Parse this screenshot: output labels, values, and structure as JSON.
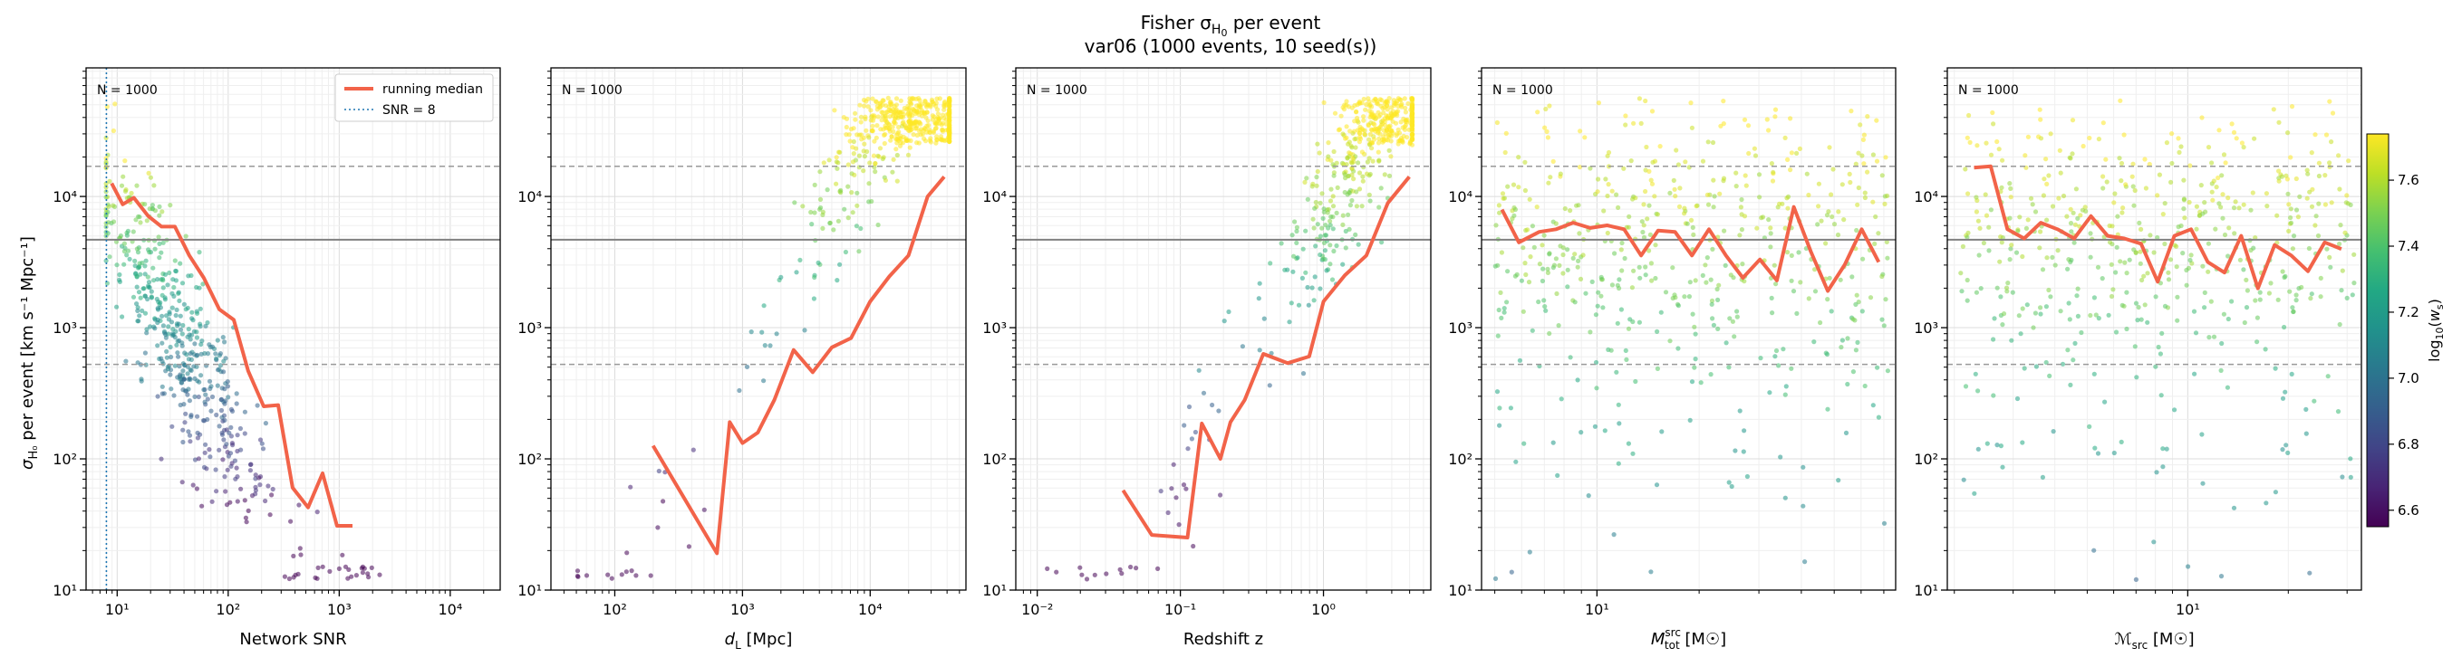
{
  "figure": {
    "title_line1": "Fisher σ",
    "title_sub": "H",
    "title_subsub": "0",
    "title_line1_tail": " per event",
    "title_line2": "var06  (1000 events, 10 seed(s))"
  },
  "ylabel": {
    "prefix": "σ",
    "sub": "H₀",
    "suffix": " per event [km s⁻¹ Mpc⁻¹]"
  },
  "y_ticks": [
    {
      "v": 1,
      "label": "10¹"
    },
    {
      "v": 2,
      "label": "10²"
    },
    {
      "v": 3,
      "label": "10³"
    },
    {
      "v": 4,
      "label": "10⁴"
    }
  ],
  "ylim_log": [
    1,
    4.98
  ],
  "ref_lines": {
    "solid_log": 3.67,
    "dashed_upper_log": 4.23,
    "dashed_lower_log": 2.72
  },
  "legend": {
    "median_label": "running median",
    "snr_label": "SNR = 8"
  },
  "colorbar": {
    "label": "log₁₀(w_s)",
    "range": [
      6.55,
      7.74
    ],
    "ticks": [
      {
        "v": 6.6,
        "label": "6.6"
      },
      {
        "v": 6.8,
        "label": "6.8"
      },
      {
        "v": 7.0,
        "label": "7.0"
      },
      {
        "v": 7.2,
        "label": "7.2"
      },
      {
        "v": 7.4,
        "label": "7.4"
      },
      {
        "v": 7.6,
        "label": "7.6"
      }
    ]
  },
  "colors": {
    "median": "#f26349",
    "snr_line": "#1f77b4",
    "ref_line": "#808080"
  },
  "chart_data": [
    {
      "type": "scatter",
      "n_label": "N = 1000",
      "xlabel": "Network SNR",
      "xlim_log": [
        0.72,
        4.45
      ],
      "x_ticks": [
        {
          "v": 1,
          "label": "10¹"
        },
        {
          "v": 2,
          "label": "10²"
        },
        {
          "v": 3,
          "label": "10³"
        },
        {
          "v": 4,
          "label": "10⁴"
        }
      ],
      "snr_threshold_log": 0.903,
      "median": {
        "x_log": [
          0.95,
          1.05,
          1.15,
          1.28,
          1.4,
          1.52,
          1.65,
          1.78,
          1.92,
          2.05,
          2.18,
          2.32,
          2.45,
          2.58,
          2.72,
          2.85,
          2.98,
          3.12
        ],
        "y_log": [
          4.1,
          3.94,
          3.99,
          3.85,
          3.77,
          3.77,
          3.55,
          3.38,
          3.14,
          3.06,
          2.67,
          2.4,
          2.41,
          1.78,
          1.63,
          1.89,
          1.49,
          1.49
        ]
      },
      "cloud": {
        "x0": 1.15,
        "slope": -1.55,
        "amp": 0.35,
        "x_lo": 0.9,
        "x_hi": 3.4,
        "x_center": 1.5,
        "x_spread": 0.38
      }
    },
    {
      "type": "scatter",
      "n_label": "N = 1000",
      "xlabel": "d_L [Mpc]",
      "xlabel_base": "d",
      "xlabel_sub": "L",
      "xlabel_tail": " [Mpc]",
      "xlim_log": [
        1.5,
        4.75
      ],
      "x_ticks": [
        {
          "v": 2,
          "label": "10²"
        },
        {
          "v": 3,
          "label": "10³"
        },
        {
          "v": 4,
          "label": "10⁴"
        }
      ],
      "median": {
        "x_log": [
          2.3,
          2.8,
          2.9,
          3.0,
          3.12,
          3.25,
          3.4,
          3.55,
          3.7,
          3.85,
          4.0,
          4.15,
          4.3,
          4.45,
          4.58
        ],
        "y_log": [
          2.1,
          1.28,
          2.28,
          2.12,
          2.2,
          2.45,
          2.83,
          2.66,
          2.85,
          2.92,
          3.2,
          3.39,
          3.55,
          4.0,
          4.15
        ]
      },
      "cloud": {
        "x0": 3.45,
        "slope": 1.9,
        "amp": 0.33,
        "x_lo": 1.7,
        "x_hi": 4.62,
        "x_center": 4.25,
        "x_spread": 0.32
      }
    },
    {
      "type": "scatter",
      "n_label": "N = 1000",
      "xlabel": "Redshift z",
      "xlim_log": [
        -2.15,
        0.75
      ],
      "x_ticks": [
        {
          "v": -2,
          "label": "10⁻²"
        },
        {
          "v": -1,
          "label": "10⁻¹"
        },
        {
          "v": 0,
          "label": "10⁰"
        }
      ],
      "median": {
        "x_log": [
          -1.4,
          -1.2,
          -0.95,
          -0.85,
          -0.72,
          -0.65,
          -0.55,
          -0.42,
          -0.25,
          -0.1,
          0.0,
          0.15,
          0.3,
          0.45,
          0.6
        ],
        "y_log": [
          1.76,
          1.42,
          1.4,
          2.27,
          2.0,
          2.28,
          2.45,
          2.8,
          2.73,
          2.78,
          3.2,
          3.4,
          3.55,
          3.95,
          4.15
        ]
      },
      "cloud": {
        "x0": -0.15,
        "slope": 2.2,
        "amp": 0.33,
        "x_lo": -2.0,
        "x_hi": 0.62,
        "x_center": 0.35,
        "x_spread": 0.3
      }
    },
    {
      "type": "scatter",
      "n_label": "N = 1000",
      "xlabel": "M_tot^src [M☉]",
      "xlabel_base": "M",
      "xlabel_sup": "src",
      "xlabel_sub": "tot",
      "xlabel_tail": " [M☉]",
      "xlim_log": [
        0.66,
        1.88
      ],
      "x_ticks": [
        {
          "v": 1,
          "label": "10¹"
        }
      ],
      "median": {
        "x_log": [
          0.72,
          0.77,
          0.83,
          0.88,
          0.93,
          0.98,
          1.03,
          1.08,
          1.13,
          1.18,
          1.23,
          1.28,
          1.33,
          1.38,
          1.43,
          1.48,
          1.53,
          1.58,
          1.63,
          1.68,
          1.73,
          1.78,
          1.83
        ],
        "y_log": [
          3.9,
          3.65,
          3.73,
          3.75,
          3.8,
          3.76,
          3.78,
          3.75,
          3.55,
          3.74,
          3.73,
          3.55,
          3.75,
          3.55,
          3.38,
          3.52,
          3.36,
          3.92,
          3.58,
          3.28,
          3.48,
          3.75,
          3.5
        ]
      },
      "cloud": {
        "flat": 3.7,
        "amp": 0.55,
        "x_lo": 0.7,
        "x_hi": 1.86
      }
    },
    {
      "type": "scatter",
      "n_label": "N = 1000",
      "xlabel": "ℳ_src [M☉]",
      "xlabel_base": "ℳ",
      "xlabel_sub": "src",
      "xlabel_tail": " [M☉]",
      "xlim_log": [
        0.28,
        1.52
      ],
      "x_ticks": [
        {
          "v": 1,
          "label": "10¹"
        }
      ],
      "median": {
        "x_log": [
          0.36,
          0.41,
          0.46,
          0.51,
          0.56,
          0.61,
          0.66,
          0.71,
          0.76,
          0.81,
          0.86,
          0.91,
          0.96,
          1.01,
          1.06,
          1.11,
          1.16,
          1.21,
          1.26,
          1.31,
          1.36,
          1.41,
          1.46
        ],
        "y_log": [
          4.22,
          4.23,
          3.75,
          3.68,
          3.8,
          3.75,
          3.68,
          3.85,
          3.7,
          3.68,
          3.64,
          3.35,
          3.7,
          3.75,
          3.5,
          3.42,
          3.7,
          3.3,
          3.63,
          3.55,
          3.43,
          3.65,
          3.6
        ]
      },
      "cloud": {
        "flat": 3.7,
        "amp": 0.55,
        "x_lo": 0.32,
        "x_hi": 1.5
      }
    }
  ]
}
